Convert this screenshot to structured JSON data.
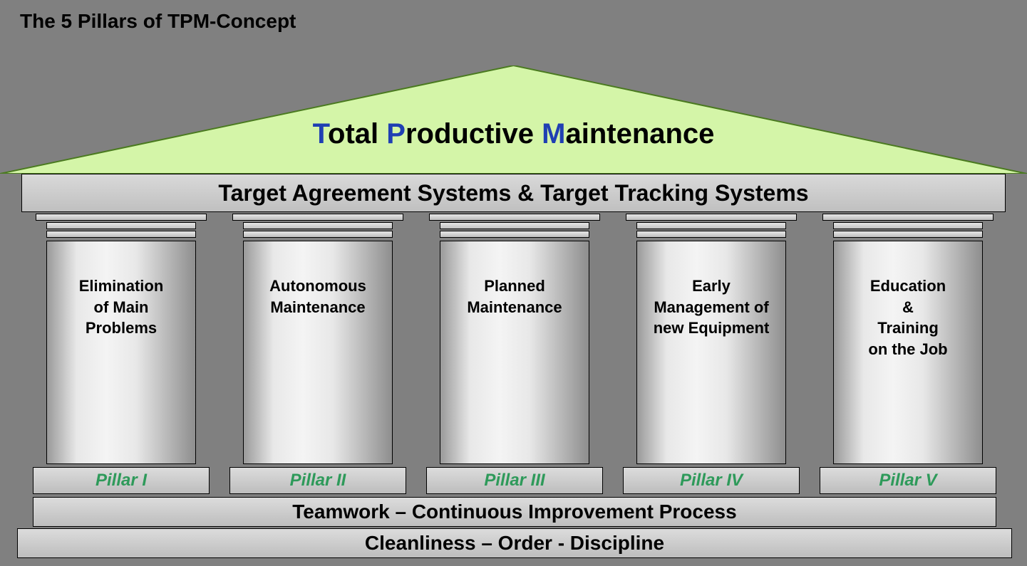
{
  "title": "The 5 Pillars of TPM-Concept",
  "roof": {
    "fill": "#d4f5a8",
    "stroke": "#4a7a1f",
    "parts": [
      {
        "initial": "T",
        "rest": "otal "
      },
      {
        "initial": "P",
        "rest": "roductive "
      },
      {
        "initial": "M",
        "rest": "aintenance"
      }
    ]
  },
  "architrave": "Target Agreement Systems & Target Tracking Systems",
  "pillars": [
    {
      "label": "Pillar I",
      "text": "Elimination\nof Main\nProblems"
    },
    {
      "label": "Pillar II",
      "text": "Autonomous\nMaintenance"
    },
    {
      "label": "Pillar III",
      "text": "Planned\nMaintenance"
    },
    {
      "label": "Pillar IV",
      "text": "Early\nManagement of\nnew Equipment"
    },
    {
      "label": "Pillar V",
      "text": "Education\n&\nTraining\non the Job"
    }
  ],
  "foundation1": "Teamwork – Continuous Improvement Process",
  "foundation2": "Cleanliness – Order - Discipline",
  "colors": {
    "background": "#808080",
    "pillar_label": "#2e9a5a",
    "tpm_initial": "#1f3fb3",
    "tpm_rest": "#000000",
    "bar_border": "#000000"
  },
  "fonts": {
    "title_size": 28,
    "roof_size": 40,
    "architrave_size": 32,
    "shaft_size": 22,
    "base_size": 24,
    "foundation_size": 28
  }
}
